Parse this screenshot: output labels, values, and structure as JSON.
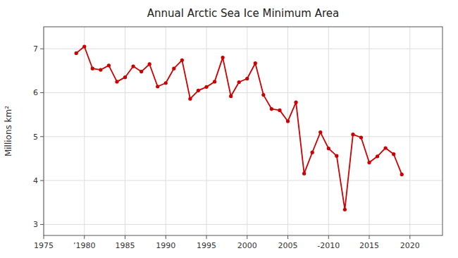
{
  "chart_data": {
    "type": "line",
    "title": "Annual Arctic Sea Ice Minimum Area",
    "y_label": "Millions km²",
    "x": [
      1979,
      1980,
      1981,
      1982,
      1983,
      1984,
      1985,
      1986,
      1987,
      1988,
      1989,
      1990,
      1991,
      1992,
      1993,
      1994,
      1995,
      1996,
      1997,
      1998,
      1999,
      2000,
      2001,
      2002,
      2003,
      2004,
      2005,
      2006,
      2007,
      2008,
      2009,
      2010,
      2011,
      2012,
      2013,
      2014,
      2015,
      2016,
      2017,
      2018,
      2019
    ],
    "values": [
      6.9,
      7.05,
      6.55,
      6.52,
      6.62,
      6.25,
      6.35,
      6.6,
      6.48,
      6.65,
      6.14,
      6.22,
      6.55,
      6.74,
      5.86,
      6.05,
      6.13,
      6.25,
      6.8,
      5.92,
      6.24,
      6.32,
      6.67,
      5.95,
      5.63,
      5.6,
      5.35,
      5.78,
      4.16,
      4.64,
      5.1,
      4.73,
      4.56,
      3.34,
      5.05,
      4.98,
      4.41,
      4.55,
      4.74,
      4.6,
      4.14
    ],
    "color": "#cc0000",
    "marker": "circle",
    "xlim": [
      1975,
      2024
    ],
    "ylim": [
      2.75,
      7.5
    ],
    "yticks": [
      3,
      4,
      5,
      6,
      7
    ],
    "xticks": [
      1975,
      {
        "value": 1980,
        "label": "’1980"
      },
      1985,
      1990,
      1995,
      {
        "value": 2000,
        "label": "2000​"
      },
      2005,
      {
        "value": 2010,
        "label": "‐2010"
      },
      2015,
      2020
    ],
    "grid": true
  }
}
